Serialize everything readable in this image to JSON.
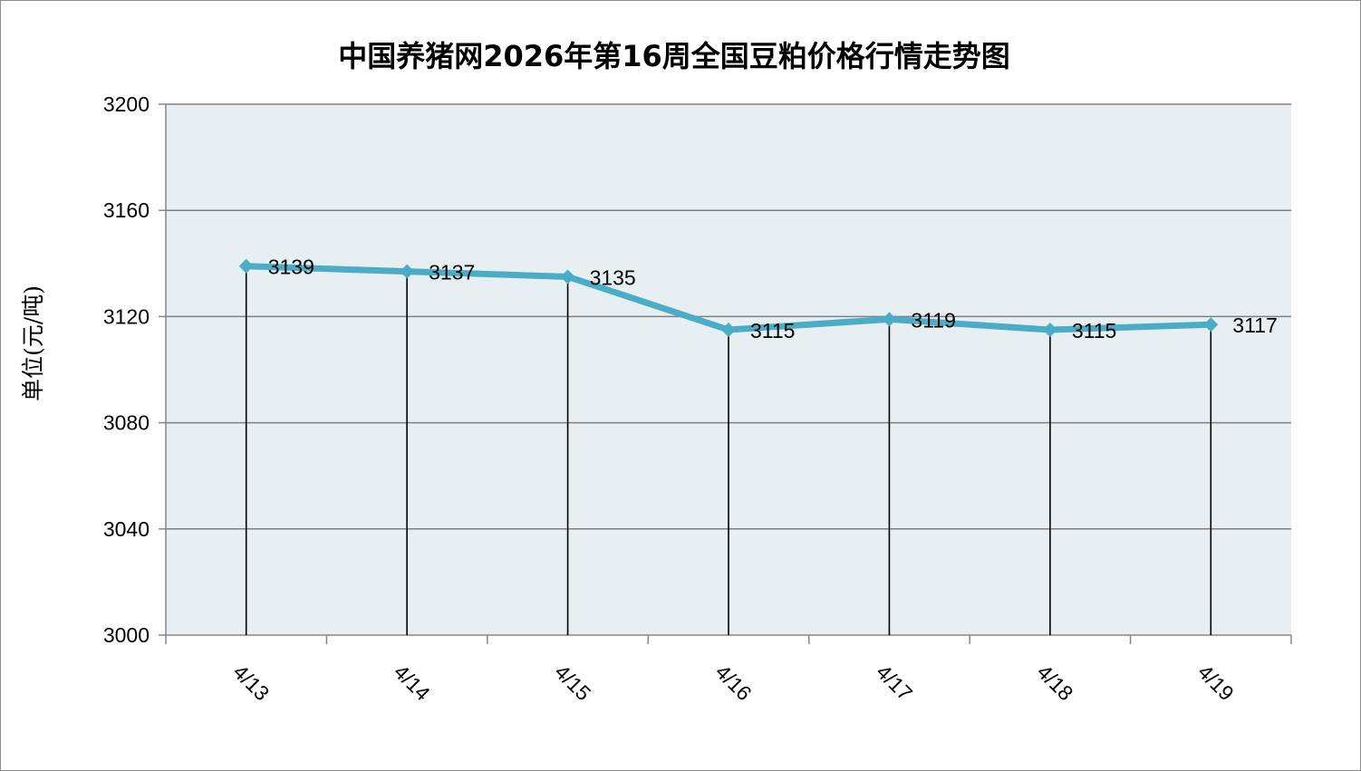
{
  "chart_data": {
    "type": "line",
    "title": "中国养猪网2026年第16周全国豆粕价格行情走势图",
    "ylabel": "单位(元/吨)",
    "xlabel": "",
    "categories": [
      "4/13",
      "4/14",
      "4/15",
      "4/16",
      "4/17",
      "4/18",
      "4/19"
    ],
    "series": [
      {
        "values": [
          3139,
          3137,
          3135,
          3115,
          3119,
          3115,
          3117
        ]
      }
    ],
    "ylim": [
      3000,
      3200
    ],
    "yticks": [
      3000,
      3040,
      3080,
      3120,
      3160,
      3200
    ],
    "grid": true,
    "drop_lines": true,
    "data_labels": true,
    "legend": "none",
    "colors": {
      "line": "#4bacc6",
      "plot_background": "#e8eff3",
      "gridline": "#808080",
      "drop_line": "#000000"
    }
  }
}
